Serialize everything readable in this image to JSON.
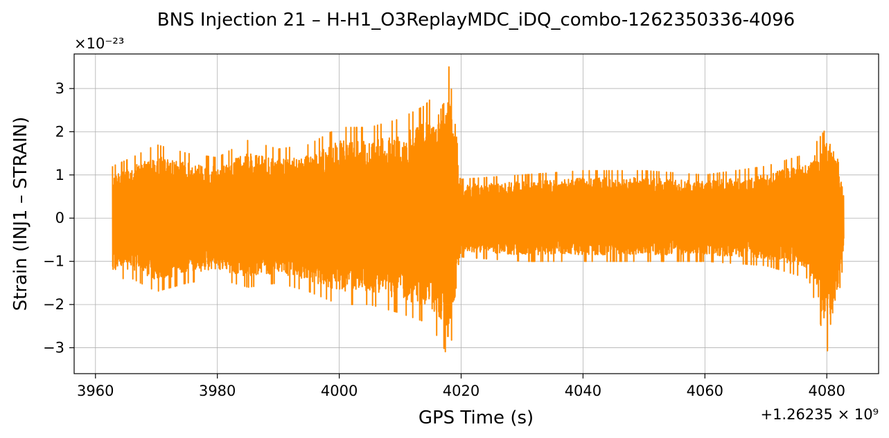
{
  "chart_data": {
    "type": "line",
    "title": "BNS Injection 21 – H-H1_O3ReplayMDC_iDQ_combo-1262350336-4096",
    "xlabel": "GPS Time (s)",
    "ylabel": "Strain (INJ1 – STRAIN)",
    "x_offset_text": "+1.26235 × 10⁹",
    "y_scale_text": "×10⁻²³",
    "xlim": [
      3956.5,
      4088.5
    ],
    "ylim": [
      -3.6,
      3.8
    ],
    "x_ticks": [
      3960,
      3980,
      4000,
      4020,
      4040,
      4060,
      4080
    ],
    "y_ticks": [
      -3,
      -2,
      -1,
      0,
      1,
      2,
      3
    ],
    "x_tick_labels": [
      "3960",
      "3980",
      "4000",
      "4020",
      "4040",
      "4060",
      "4080"
    ],
    "y_tick_labels": [
      "−3",
      "−2",
      "−1",
      "0",
      "1",
      "2",
      "3"
    ],
    "grid": true,
    "color": "#ff8c00",
    "series": [
      {
        "x_range": [
          3962.8,
          4082.8
        ],
        "envelope": [
          {
            "x": 3962.8,
            "upper": 1.2,
            "lower": -1.4
          },
          {
            "x": 3966,
            "upper": 1.4,
            "lower": -1.4
          },
          {
            "x": 3970,
            "upper": 1.7,
            "lower": -1.7
          },
          {
            "x": 3975,
            "upper": 1.5,
            "lower": -1.5
          },
          {
            "x": 3980,
            "upper": 1.4,
            "lower": -1.4
          },
          {
            "x": 3985,
            "upper": 1.8,
            "lower": -1.6
          },
          {
            "x": 3990,
            "upper": 1.6,
            "lower": -1.5
          },
          {
            "x": 3995,
            "upper": 1.7,
            "lower": -1.7
          },
          {
            "x": 4000,
            "upper": 2.1,
            "lower": -2.0
          },
          {
            "x": 4005,
            "upper": 2.1,
            "lower": -2.0
          },
          {
            "x": 4010,
            "upper": 2.3,
            "lower": -2.2
          },
          {
            "x": 4014,
            "upper": 2.6,
            "lower": -2.4
          },
          {
            "x": 4016.5,
            "upper": 3.0,
            "lower": -2.8
          },
          {
            "x": 4018,
            "upper": 3.5,
            "lower": -3.3
          },
          {
            "x": 4020,
            "upper": 0.9,
            "lower": -0.9
          },
          {
            "x": 4030,
            "upper": 1.0,
            "lower": -1.0
          },
          {
            "x": 4040,
            "upper": 1.1,
            "lower": -1.0
          },
          {
            "x": 4050,
            "upper": 1.1,
            "lower": -1.0
          },
          {
            "x": 4060,
            "upper": 1.0,
            "lower": -1.0
          },
          {
            "x": 4070,
            "upper": 1.2,
            "lower": -1.1
          },
          {
            "x": 4077,
            "upper": 1.5,
            "lower": -1.4
          },
          {
            "x": 4080.5,
            "upper": 2.2,
            "lower": -3.3
          },
          {
            "x": 4082.8,
            "upper": 0.7,
            "lower": -0.9
          }
        ]
      }
    ]
  }
}
